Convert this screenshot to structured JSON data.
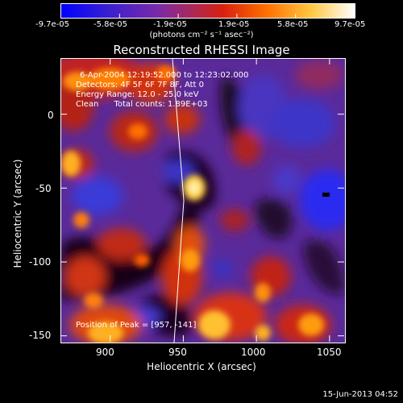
{
  "colorbar": {
    "tick_labels": [
      "-9.7e-05",
      "-5.8e-05",
      "-1.9e-05",
      "1.9e-05",
      "5.8e-05",
      "9.7e-05"
    ],
    "units_label": "(photons cm⁻² s⁻¹ asec⁻²)",
    "gradient_colors": [
      "#0000ff",
      "#4a1bb0",
      "#8c2ba0",
      "#c8243a",
      "#e8300c",
      "#ff7c00",
      "#ffd040",
      "#ffffff"
    ]
  },
  "plot": {
    "title": "Reconstructed RHESSI Image",
    "annotations": {
      "time_range": "6-Apr-2004 12:19:52.000 to 12:23:02.000",
      "detectors": "Detectors: 4F 5F 6F 7F 8F, Att 0",
      "energy_range": "Energy Range: 12.0 - 25.0 keV",
      "algorithm_counts": "Clean      Total counts: 1.89E+03",
      "peak_position": "Position of Peak = [957, -141]"
    },
    "xlabel": "Heliocentric X (arcsec)",
    "ylabel": "Heliocentric Y (arcsec)",
    "x_ticks": [
      "900",
      "950",
      "1000",
      "1050"
    ],
    "y_ticks": [
      "0",
      "-50",
      "-100",
      "-150"
    ],
    "x_tick_values": [
      900,
      950,
      1000,
      1050
    ],
    "y_tick_values": [
      0,
      -50,
      -100,
      -150
    ],
    "xlim": [
      866,
      1060
    ],
    "ylim": [
      -154,
      38
    ]
  },
  "footer": {
    "date": "15-Jun-2013 04:52"
  }
}
